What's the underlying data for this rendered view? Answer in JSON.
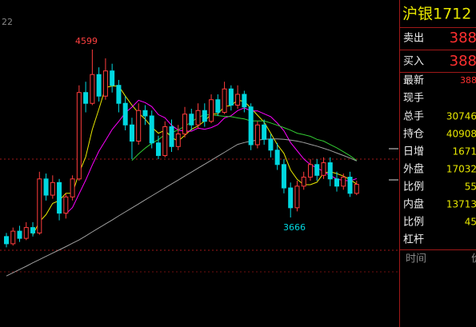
{
  "chart_data": {
    "type": "candlestick",
    "corner_label": "22",
    "ylim": [
      3364,
      4874
    ],
    "up_color": "#ff3c3c",
    "down_color": "#00d8e0",
    "open": [
      3560,
      3520,
      3590,
      3550,
      3610,
      3580,
      3880,
      3790,
      3860,
      3690,
      3780,
      3880,
      4360,
      4300,
      4460,
      4340,
      4480,
      4400,
      4300,
      4180,
      4090,
      4260,
      4230,
      4080,
      4010,
      4170,
      4060,
      4130,
      4240,
      4180,
      4260,
      4200,
      4320,
      4250,
      4380,
      4290,
      4350,
      4280,
      4070,
      4180,
      4100,
      4040,
      3960,
      3830,
      3720,
      3840,
      3890,
      3960,
      3900,
      3970,
      3880,
      3840,
      3890,
      3800
    ],
    "close": [
      3520,
      3590,
      3550,
      3610,
      3580,
      3880,
      3790,
      3860,
      3690,
      3780,
      3880,
      4360,
      4300,
      4460,
      4340,
      4480,
      4400,
      4300,
      4180,
      4090,
      4260,
      4230,
      4080,
      4010,
      4170,
      4060,
      4130,
      4240,
      4180,
      4260,
      4200,
      4320,
      4250,
      4380,
      4290,
      4350,
      4280,
      4070,
      4180,
      4100,
      4040,
      3960,
      3830,
      3720,
      3840,
      3890,
      3960,
      3900,
      3970,
      3880,
      3840,
      3890,
      3800,
      3850
    ],
    "high": [
      3580,
      3610,
      3620,
      3640,
      3640,
      3920,
      3910,
      3900,
      3880,
      3800,
      3900,
      4400,
      4420,
      4599,
      4500,
      4550,
      4520,
      4430,
      4340,
      4220,
      4300,
      4290,
      4260,
      4120,
      4200,
      4210,
      4180,
      4280,
      4270,
      4300,
      4300,
      4350,
      4350,
      4420,
      4400,
      4400,
      4370,
      4300,
      4200,
      4210,
      4130,
      4080,
      3990,
      3860,
      3870,
      3920,
      3990,
      3990,
      4000,
      4000,
      3920,
      3910,
      3920,
      3870
    ],
    "low": [
      3500,
      3510,
      3530,
      3540,
      3560,
      3570,
      3760,
      3770,
      3650,
      3660,
      3760,
      3870,
      4250,
      4290,
      4310,
      4320,
      4360,
      4250,
      4150,
      3990,
      4070,
      4180,
      4050,
      3990,
      4000,
      4030,
      4040,
      4110,
      4150,
      4160,
      4170,
      4190,
      4230,
      4240,
      4260,
      4270,
      4250,
      4040,
      4050,
      4070,
      4000,
      3930,
      3800,
      3666,
      3700,
      3820,
      3870,
      3870,
      3880,
      3840,
      3810,
      3820,
      3780,
      3790
    ],
    "lines": [
      {
        "color": "#e8e800",
        "values": [
          null,
          null,
          null,
          null,
          3570,
          3642,
          3682,
          3744,
          3760,
          3800,
          3800,
          3914,
          4002,
          4156,
          4268,
          4388,
          4396,
          4396,
          4340,
          4290,
          4246,
          4212,
          4168,
          4134,
          4150,
          4110,
          4090,
          4122,
          4156,
          4174,
          4202,
          4240,
          4242,
          4282,
          4288,
          4318,
          4310,
          4274,
          4234,
          4196,
          4134,
          4070,
          4022,
          3930,
          3878,
          3848,
          3848,
          3862,
          3912,
          3920,
          3910,
          3896,
          3876,
          3852
        ]
      },
      {
        "color": "#ff00ff",
        "values": [
          null,
          null,
          null,
          null,
          null,
          null,
          null,
          null,
          null,
          3685,
          3721,
          3798,
          3873,
          3958,
          4034,
          4094,
          4155,
          4199,
          4248,
          4279,
          4317,
          4304,
          4282,
          4237,
          4220,
          4178,
          4151,
          4145,
          4145,
          4162,
          4156,
          4165,
          4182,
          4219,
          4231,
          4260,
          4275,
          4258,
          4258,
          4242,
          4226,
          4190,
          4148,
          4082,
          4037,
          3991,
          3959,
          3942,
          3921,
          3899,
          3879,
          3872,
          3869,
          3882
        ]
      },
      {
        "color": "#33cc33",
        "values": [
          null,
          null,
          null,
          null,
          null,
          null,
          null,
          null,
          null,
          null,
          null,
          null,
          null,
          null,
          null,
          null,
          null,
          null,
          null,
          3982,
          4019,
          4051,
          4078,
          4098,
          4127,
          4136,
          4153,
          4172,
          4197,
          4221,
          4237,
          4235,
          4232,
          4228,
          4226,
          4219,
          4213,
          4202,
          4202,
          4202,
          4191,
          4178,
          4165,
          4151,
          4134,
          4126,
          4117,
          4100,
          4090,
          4071,
          4053,
          4031,
          4009,
          3982
        ]
      },
      {
        "color": "#a0a0a0",
        "values": [
          3341,
          3359,
          3377,
          3395,
          3414,
          3432,
          3450,
          3468,
          3486,
          3504,
          3523,
          3541,
          3563,
          3586,
          3608,
          3630,
          3652,
          3675,
          3697,
          3719,
          3741,
          3764,
          3786,
          3808,
          3830,
          3852,
          3874,
          3896,
          3918,
          3940,
          3962,
          3984,
          4006,
          4028,
          4050,
          4072,
          4082,
          4090,
          4096,
          4100,
          4102,
          4102,
          4100,
          4096,
          4090,
          4082,
          4072,
          4062,
          4050,
          4038,
          4024,
          4010,
          3996,
          3980
        ]
      }
    ]
  },
  "quote_panel": {
    "title": "沪银1712",
    "rows": [
      {
        "label": "卖出",
        "value": "388"
      },
      {
        "label": "买入",
        "value": "388"
      },
      {
        "label": "最新",
        "value": "388"
      },
      {
        "label": "现手",
        "value": null
      },
      {
        "label": "总手",
        "value": "30746"
      },
      {
        "label": "持仓",
        "value": "40908"
      },
      {
        "label": "日增",
        "value": "1671"
      },
      {
        "label": "外盘",
        "value": "17032"
      },
      {
        "label": "比例",
        "value": "55"
      },
      {
        "label": "内盘",
        "value": "13713"
      },
      {
        "label": "比例",
        "value": "45"
      },
      {
        "label": "杠杆",
        "value": null
      }
    ],
    "footer": [
      "时间",
      "价"
    ]
  }
}
